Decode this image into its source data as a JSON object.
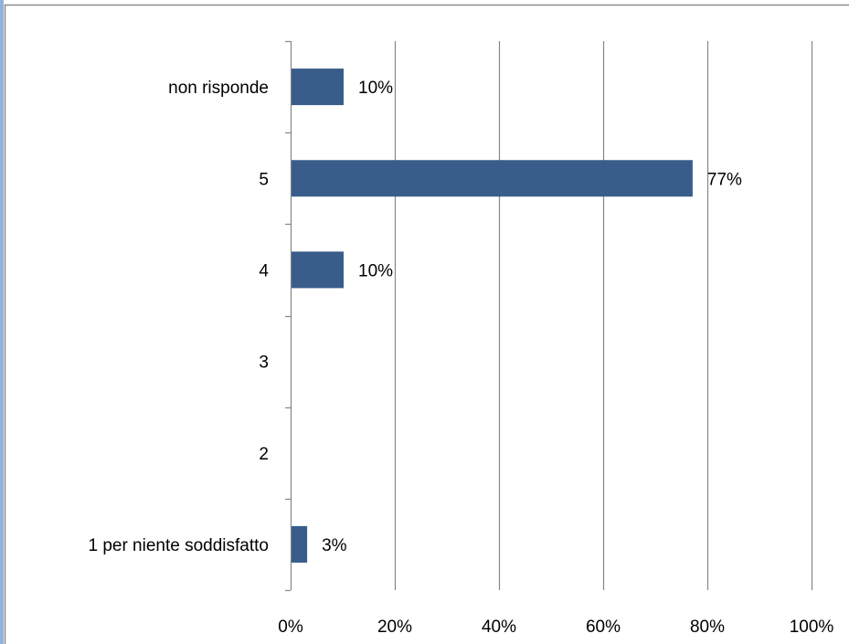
{
  "chart_data": {
    "type": "bar",
    "orientation": "horizontal",
    "categories": [
      "1 per niente soddisfatto",
      "2",
      "3",
      "4",
      "5",
      "non risponde"
    ],
    "values": [
      3,
      0,
      0,
      10,
      77,
      10
    ],
    "data_labels": [
      "3%",
      "",
      "",
      "10%",
      "77%",
      "10%"
    ],
    "xlim": [
      0,
      100
    ],
    "x_ticks": [
      0,
      20,
      40,
      60,
      80,
      100
    ],
    "x_tick_labels": [
      "0%",
      "20%",
      "40%",
      "60%",
      "80%",
      "100%"
    ],
    "grid": "vertical",
    "legend": "none",
    "bar_color": "#385D8A",
    "grid_color": "#868686",
    "frame_color": "#8C8C8C",
    "left_accent_color": "#95B3D7"
  }
}
